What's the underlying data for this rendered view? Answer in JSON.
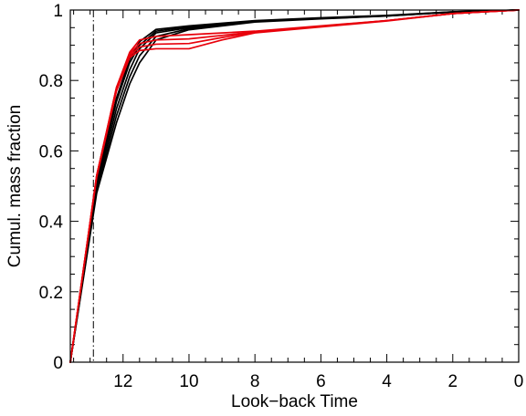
{
  "chart_data": {
    "type": "line",
    "xlabel": "Look−back Time",
    "ylabel": "Cumul. mass fraction",
    "xlim": [
      13.6,
      0
    ],
    "ylim": [
      0,
      1
    ],
    "x_axis_reversed": true,
    "x_ticks": [
      12,
      10,
      8,
      6,
      4,
      2,
      0
    ],
    "x_tick_labels": [
      "12",
      "10",
      "8",
      "6",
      "4",
      "2",
      "0"
    ],
    "y_ticks": [
      0,
      0.2,
      0.4,
      0.6,
      0.8,
      1
    ],
    "y_tick_labels": [
      "0",
      "0.2",
      "0.4",
      "0.6",
      "0.8",
      "1"
    ],
    "grid": false,
    "vertical_reference_line": {
      "x": 12.9,
      "style": "dash-dot"
    },
    "colors": {
      "black": "#000000",
      "red": "#e8000b"
    },
    "series": [
      {
        "color": "#000000",
        "x": [
          13.6,
          12.8,
          12.2,
          11.8,
          11.5,
          11.0,
          10.0,
          8.0,
          6.0,
          4.0,
          2.0,
          0.0
        ],
        "y": [
          0.0,
          0.52,
          0.75,
          0.86,
          0.91,
          0.945,
          0.955,
          0.97,
          0.978,
          0.985,
          0.995,
          1.0
        ]
      },
      {
        "color": "#000000",
        "x": [
          13.6,
          12.8,
          12.2,
          11.8,
          11.5,
          11.0,
          10.0,
          8.0,
          6.0,
          4.0,
          2.0,
          0.0
        ],
        "y": [
          0.0,
          0.51,
          0.74,
          0.85,
          0.9,
          0.94,
          0.953,
          0.969,
          0.977,
          0.984,
          0.995,
          1.0
        ]
      },
      {
        "color": "#000000",
        "x": [
          13.6,
          12.8,
          12.2,
          11.8,
          11.5,
          11.0,
          10.0,
          8.0,
          6.0,
          4.0,
          2.0,
          0.0
        ],
        "y": [
          0.0,
          0.5,
          0.72,
          0.83,
          0.89,
          0.935,
          0.95,
          0.968,
          0.976,
          0.984,
          0.994,
          1.0
        ]
      },
      {
        "color": "#000000",
        "x": [
          13.6,
          12.8,
          12.2,
          11.8,
          11.5,
          11.0,
          10.0,
          8.0,
          6.0,
          4.0,
          2.0,
          0.0
        ],
        "y": [
          0.0,
          0.49,
          0.7,
          0.81,
          0.87,
          0.925,
          0.947,
          0.967,
          0.976,
          0.983,
          0.994,
          1.0
        ]
      },
      {
        "color": "#000000",
        "x": [
          13.6,
          12.8,
          12.2,
          11.8,
          11.5,
          11.0,
          10.0,
          8.0,
          6.0,
          4.0,
          2.0,
          0.0
        ],
        "y": [
          0.0,
          0.48,
          0.68,
          0.79,
          0.85,
          0.915,
          0.944,
          0.966,
          0.975,
          0.983,
          0.994,
          1.0
        ]
      },
      {
        "color": "#e8000b",
        "x": [
          13.6,
          12.8,
          12.2,
          11.8,
          11.5,
          11.0,
          10.0,
          9.0,
          8.0,
          6.0,
          4.0,
          2.0,
          0.0
        ],
        "y": [
          0.0,
          0.53,
          0.78,
          0.88,
          0.915,
          0.925,
          0.93,
          0.935,
          0.94,
          0.955,
          0.97,
          0.99,
          1.0
        ]
      },
      {
        "color": "#e8000b",
        "x": [
          13.6,
          12.8,
          12.2,
          11.8,
          11.5,
          11.0,
          10.0,
          9.0,
          8.0,
          6.0,
          4.0,
          2.0,
          0.0
        ],
        "y": [
          0.0,
          0.53,
          0.78,
          0.875,
          0.905,
          0.915,
          0.918,
          0.928,
          0.938,
          0.954,
          0.97,
          0.99,
          1.0
        ]
      },
      {
        "color": "#e8000b",
        "x": [
          13.6,
          12.8,
          12.2,
          11.8,
          11.5,
          11.0,
          10.0,
          9.0,
          8.0,
          6.0,
          4.0,
          2.0,
          0.0
        ],
        "y": [
          0.0,
          0.53,
          0.775,
          0.87,
          0.895,
          0.903,
          0.905,
          0.922,
          0.937,
          0.953,
          0.97,
          0.99,
          1.0
        ]
      },
      {
        "color": "#e8000b",
        "x": [
          13.6,
          12.8,
          12.2,
          11.8,
          11.5,
          11.0,
          10.0,
          9.0,
          8.0,
          6.0,
          4.0,
          2.0,
          0.0
        ],
        "y": [
          0.0,
          0.525,
          0.77,
          0.865,
          0.885,
          0.89,
          0.89,
          0.915,
          0.935,
          0.952,
          0.969,
          0.99,
          1.0
        ]
      }
    ]
  }
}
